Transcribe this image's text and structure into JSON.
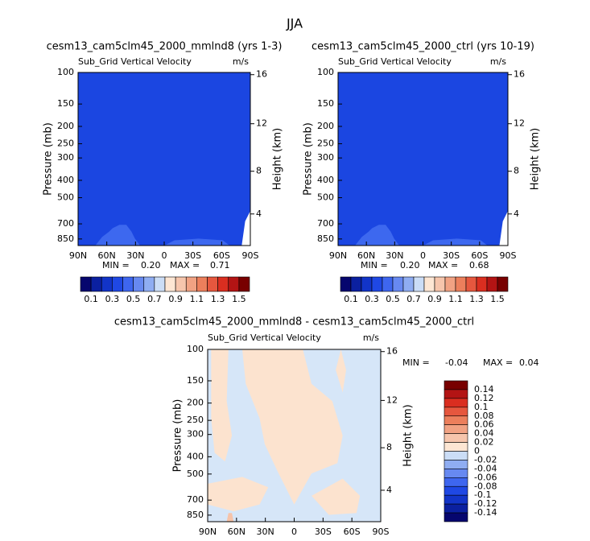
{
  "title": "JJA",
  "chart_data": [
    {
      "type": "contour",
      "title": "cesm13_cam5clm45_2000_mmlnd8 (yrs 1-3)",
      "subtitle_left": "Sub_Grid Vertical Velocity",
      "subtitle_right": "m/s",
      "ylabel": "Pressure (mb)",
      "y2label": "Height (km)",
      "log_y": true,
      "ylim": [
        100,
        925
      ],
      "yticks": [
        100,
        150,
        200,
        250,
        300,
        400,
        500,
        700,
        850
      ],
      "y2ticks": [
        4,
        8,
        12,
        16
      ],
      "xlim": [
        90,
        -90
      ],
      "xticks": [
        {
          "value": 90,
          "label": "90N"
        },
        {
          "value": 60,
          "label": "60N"
        },
        {
          "value": 30,
          "label": "30N"
        },
        {
          "value": 0,
          "label": "0"
        },
        {
          "value": -30,
          "label": "30S"
        },
        {
          "value": -60,
          "label": "60S"
        },
        {
          "value": -90,
          "label": "90S"
        }
      ],
      "stats": [
        "MIN =",
        "0.20",
        "MAX =",
        "0.71"
      ],
      "colorbar": {
        "orientation": "horizontal",
        "colors": [
          "#06066e",
          "#0b20a0",
          "#1234c8",
          "#1f48e4",
          "#3e66ef",
          "#6789f1",
          "#8fadf2",
          "#cbddf6",
          "#fde6d3",
          "#f6c5ac",
          "#f1a283",
          "#ec7f5c",
          "#e6573e",
          "#da2e20",
          "#b31414",
          "#780000"
        ],
        "levels": [
          0.1,
          0.3,
          0.5,
          0.7,
          0.9,
          1.1,
          1.3,
          1.5
        ]
      }
    },
    {
      "type": "contour",
      "title": "cesm13_cam5clm45_2000_ctrl (yrs 10-19)",
      "subtitle_left": "Sub_Grid Vertical Velocity",
      "subtitle_right": "m/s",
      "ylabel": "Pressure (mb)",
      "y2label": "Height (km)",
      "log_y": true,
      "ylim": [
        100,
        925
      ],
      "yticks": [
        100,
        150,
        200,
        250,
        300,
        400,
        500,
        700,
        850
      ],
      "y2ticks": [
        4,
        8,
        12,
        16
      ],
      "xlim": [
        90,
        -90
      ],
      "xticks": [
        {
          "value": 90,
          "label": "90N"
        },
        {
          "value": 60,
          "label": "60N"
        },
        {
          "value": 30,
          "label": "30N"
        },
        {
          "value": 0,
          "label": "0"
        },
        {
          "value": -30,
          "label": "30S"
        },
        {
          "value": -60,
          "label": "60S"
        },
        {
          "value": -90,
          "label": "90S"
        }
      ],
      "stats": [
        "MIN =",
        "0.20",
        "MAX =",
        "0.68"
      ],
      "colorbar": {
        "orientation": "horizontal",
        "colors": [
          "#06066e",
          "#0b20a0",
          "#1234c8",
          "#1f48e4",
          "#3e66ef",
          "#6789f1",
          "#8fadf2",
          "#cbddf6",
          "#fde6d3",
          "#f6c5ac",
          "#f1a283",
          "#ec7f5c",
          "#e6573e",
          "#da2e20",
          "#b31414",
          "#780000"
        ],
        "levels": [
          0.1,
          0.3,
          0.5,
          0.7,
          0.9,
          1.1,
          1.3,
          1.5
        ]
      }
    },
    {
      "type": "contour",
      "title": "cesm13_cam5clm45_2000_mmlnd8 - cesm13_cam5clm45_2000_ctrl",
      "subtitle_left": "Sub_Grid Vertical Velocity",
      "subtitle_right": "m/s",
      "ylabel": "Pressure (mb)",
      "y2label": "Height (km)",
      "log_y": true,
      "ylim": [
        100,
        925
      ],
      "yticks": [
        100,
        150,
        200,
        250,
        300,
        400,
        500,
        700,
        850
      ],
      "y2ticks": [
        4,
        8,
        12,
        16
      ],
      "xlim": [
        90,
        -90
      ],
      "xticks": [
        {
          "value": 90,
          "label": "90N"
        },
        {
          "value": 60,
          "label": "60N"
        },
        {
          "value": 30,
          "label": "30N"
        },
        {
          "value": 0,
          "label": "0"
        },
        {
          "value": -30,
          "label": "30S"
        },
        {
          "value": -60,
          "label": "60S"
        },
        {
          "value": -90,
          "label": "90S"
        }
      ],
      "stats": [
        "MIN =",
        "-0.04",
        "MAX =",
        "0.04"
      ],
      "colorbar": {
        "orientation": "vertical",
        "colors": [
          "#780000",
          "#b31414",
          "#da2e20",
          "#e6573e",
          "#ec7f5c",
          "#f1a283",
          "#f6c5ac",
          "#fde6d3",
          "#cbddf6",
          "#8fadf2",
          "#6789f1",
          "#3e66ef",
          "#1f48e4",
          "#1234c8",
          "#0b20a0",
          "#06066e"
        ],
        "levels": [
          0.14,
          0.12,
          0.1,
          0.08,
          0.06,
          0.04,
          0.02,
          0,
          -0.02,
          -0.04,
          -0.06,
          -0.08,
          -0.1,
          -0.12,
          -0.14
        ]
      }
    }
  ]
}
